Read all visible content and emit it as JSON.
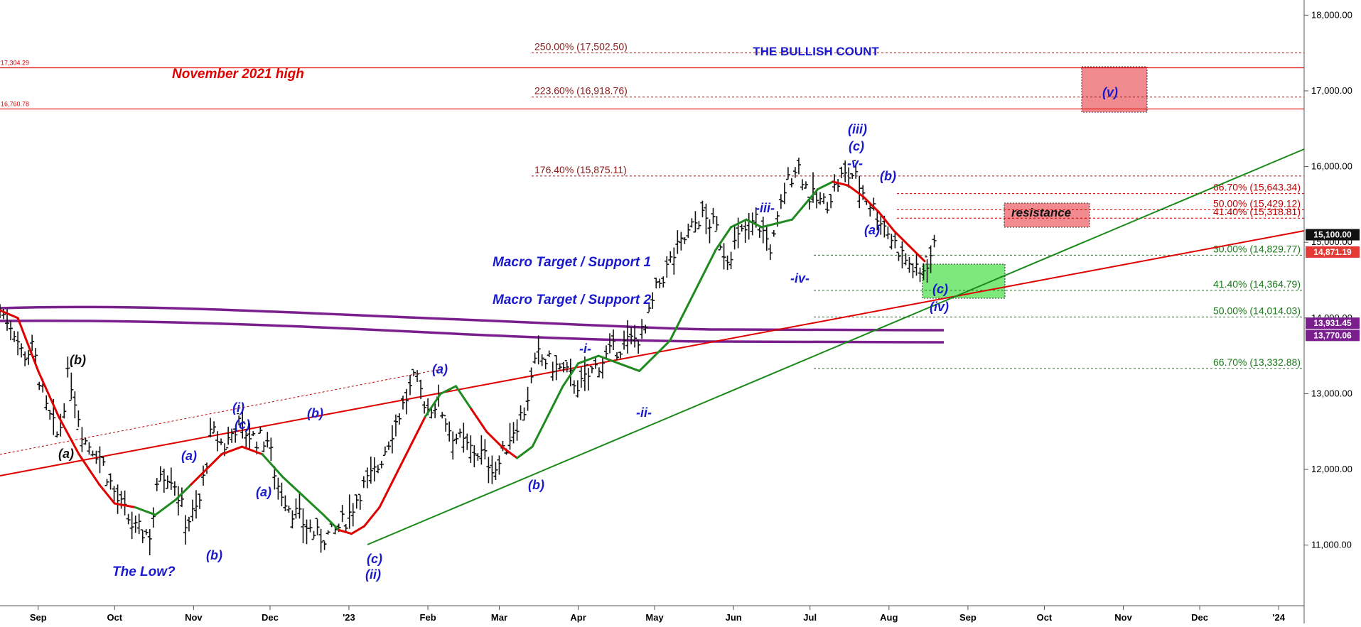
{
  "chart_data": {
    "type": "bar",
    "subtype": "ohlc-price-chart",
    "title": "THE BULLISH COUNT",
    "grid": false,
    "ylim": [
      10200,
      18200
    ],
    "y_ticks": [
      "11,000.00",
      "12,000.00",
      "13,000.00",
      "14,000.00",
      "15,000.00",
      "16,000.00",
      "17,000.00",
      "18,000.00"
    ],
    "y_tick_values": [
      11000,
      12000,
      13000,
      14000,
      15000,
      16000,
      17000,
      18000
    ],
    "x_ticks": [
      "Sep",
      "Oct",
      "Nov",
      "Dec",
      "'23",
      "Feb",
      "Mar",
      "Apr",
      "May",
      "Jun",
      "Jul",
      "Aug",
      "Sep",
      "Oct",
      "Nov",
      "Dec",
      "'24"
    ],
    "x_tick_days": [
      0,
      30,
      61,
      91,
      122,
      153,
      181,
      212,
      242,
      273,
      303,
      334,
      365,
      395,
      426,
      456,
      487
    ],
    "x_start_day": -15,
    "x_end_day": 497,
    "price_path": {
      "days": [
        -15,
        -10,
        -6,
        -2,
        3,
        8,
        12,
        18,
        24,
        31,
        38,
        44,
        48,
        53,
        58,
        63,
        68,
        73,
        78,
        85,
        90,
        94,
        99,
        104,
        110,
        116,
        122,
        126,
        133,
        140,
        148,
        153,
        157,
        162,
        168,
        174,
        180,
        186,
        191,
        196,
        201,
        206,
        213,
        220,
        227,
        233,
        238,
        243,
        249,
        255,
        260,
        266,
        270,
        276,
        282,
        288,
        293,
        298,
        303,
        309,
        315,
        320,
        325,
        331,
        336,
        341,
        346,
        349,
        353
      ],
      "values": [
        14100,
        13900,
        13500,
        13600,
        12800,
        12400,
        13300,
        12400,
        12200,
        11600,
        11200,
        11150,
        12000,
        11900,
        11300,
        11500,
        12500,
        12300,
        12600,
        12400,
        12400,
        11800,
        11500,
        11300,
        11100,
        11150,
        11400,
        11700,
        12000,
        12600,
        13200,
        12800,
        12900,
        12500,
        12300,
        12200,
        12000,
        12500,
        12800,
        13500,
        13400,
        13300,
        13100,
        13400,
        13600,
        13700,
        13800,
        14400,
        14800,
        15100,
        15350,
        15200,
        14800,
        15100,
        15300,
        14900,
        15700,
        16050,
        15600,
        15500,
        15850,
        15900,
        15600,
        15300,
        15000,
        14750,
        14550,
        14750,
        15000
      ]
    },
    "moving_average": {
      "days": [
        -15,
        -8,
        0,
        8,
        16,
        24,
        30,
        38,
        46,
        54,
        60,
        66,
        72,
        80,
        88,
        96,
        104,
        112,
        118,
        123,
        128,
        134,
        140,
        146,
        152,
        158,
        164,
        170,
        176,
        182,
        188,
        194,
        200,
        206,
        212,
        220,
        228,
        236,
        242,
        248,
        254,
        260,
        266,
        272,
        278,
        284,
        290,
        296,
        301,
        306,
        312,
        318,
        324,
        330,
        336,
        342,
        348
      ],
      "values": [
        14100,
        14000,
        13300,
        12700,
        12200,
        11800,
        11550,
        11500,
        11400,
        11600,
        11800,
        12000,
        12200,
        12300,
        12200,
        11900,
        11650,
        11400,
        11200,
        11150,
        11250,
        11500,
        11900,
        12300,
        12700,
        13000,
        13100,
        12800,
        12500,
        12300,
        12150,
        12300,
        12700,
        13100,
        13400,
        13500,
        13400,
        13300,
        13500,
        13700,
        14100,
        14500,
        14900,
        15200,
        15300,
        15200,
        15250,
        15300,
        15500,
        15700,
        15800,
        15750,
        15600,
        15400,
        15150,
        14950,
        14750
      ],
      "segment_colors": [
        "red",
        "green",
        "red",
        "green",
        "red",
        "green",
        "red",
        "green",
        "red"
      ],
      "segment_breaks_days": [
        -15,
        36,
        60,
        86,
        120,
        150,
        168,
        190,
        310,
        348
      ]
    },
    "fib_levels": [
      {
        "label": "250.00% (17,502.50)",
        "value": 17502.5,
        "color": "#8b1a1a"
      },
      {
        "label": "223.60% (16,918.76)",
        "value": 16918.76,
        "color": "#8b1a1a"
      },
      {
        "label": "176.40% (15,875.11)",
        "value": 15875.11,
        "color": "#8b1a1a"
      },
      {
        "label": "66.70% (15,643.34)",
        "value": 15643.34,
        "color": "#c00000"
      },
      {
        "label": "50.00% (15,429.12)",
        "value": 15429.12,
        "color": "#c00000"
      },
      {
        "label": "41.40% (15,318.81)",
        "value": 15318.81,
        "color": "#c00000"
      },
      {
        "label": "30.00% (14,829.77)",
        "value": 14829.77,
        "color": "#1a7a1a"
      },
      {
        "label": "41.40% (14,364.79)",
        "value": 14364.79,
        "color": "#1a7a1a"
      },
      {
        "label": "50.00% (14,014.03)",
        "value": 14014.03,
        "color": "#1a7a1a"
      },
      {
        "label": "66.70% (13,332.88)",
        "value": 13332.88,
        "color": "#1a7a1a"
      }
    ],
    "horizontal_lines": [
      {
        "label": "17,304.29",
        "value": 17304.29,
        "color": "#e00000"
      },
      {
        "label": "16,760.78",
        "value": 16760.78,
        "color": "#e00000"
      }
    ],
    "price_badges": [
      {
        "label": "15,100.00",
        "value": 15100,
        "color": "#111111"
      },
      {
        "label": "14,871.19",
        "value": 14871.19,
        "color": "#e53935"
      },
      {
        "label": "13,931.45",
        "value": 13931.45,
        "color": "#7b1f8f"
      },
      {
        "label": "13,770.06",
        "value": 13770.06,
        "color": "#7b1f8f"
      }
    ],
    "annotations": [
      {
        "text": "November 2021 high",
        "color": "#e00000"
      },
      {
        "text": "resistance",
        "color": "#111111"
      },
      {
        "text": "Macro Target / Support 1",
        "color": "#1a1acd"
      },
      {
        "text": "Macro Target / Support 2",
        "color": "#1a1acd"
      },
      {
        "text": "The Low?",
        "color": "#1a1acd"
      }
    ],
    "wave_labels": [
      {
        "text": "(b)",
        "color": "black"
      },
      {
        "text": "(a)",
        "color": "black"
      },
      {
        "text": "(a)",
        "color": "blue"
      },
      {
        "text": "(b)",
        "color": "blue"
      },
      {
        "text": "(i)",
        "color": "blue"
      },
      {
        "text": "(c)",
        "color": "blue"
      },
      {
        "text": "(a)",
        "color": "blue"
      },
      {
        "text": "(b)",
        "color": "blue"
      },
      {
        "text": "(c)",
        "color": "blue"
      },
      {
        "text": "(ii)",
        "color": "blue"
      },
      {
        "text": "(a)",
        "color": "blue"
      },
      {
        "text": "(b)",
        "color": "blue"
      },
      {
        "text": "-i-",
        "color": "blue"
      },
      {
        "text": "-ii-",
        "color": "blue"
      },
      {
        "text": "-iii-",
        "color": "blue"
      },
      {
        "text": "-iv-",
        "color": "blue"
      },
      {
        "text": "(iii)",
        "color": "blue"
      },
      {
        "text": "(c)",
        "color": "blue"
      },
      {
        "text": "-v-",
        "color": "blue"
      },
      {
        "text": "(b)",
        "color": "blue"
      },
      {
        "text": "(a)",
        "color": "blue"
      },
      {
        "text": "(c)",
        "color": "blue"
      },
      {
        "text": "(iv)",
        "color": "blue"
      },
      {
        "text": "(v)",
        "color": "blue"
      }
    ]
  }
}
